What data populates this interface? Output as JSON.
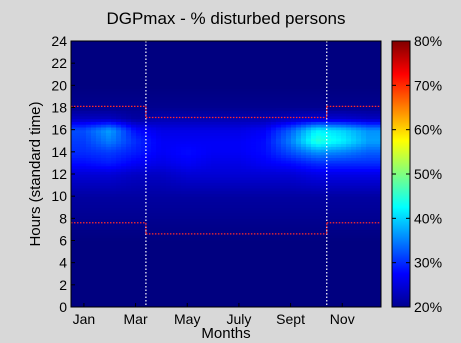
{
  "chart_data": {
    "type": "heatmap",
    "title": "DGPmax - % disturbed persons",
    "xlabel": "Months",
    "ylabel": "Hours (standard time)",
    "x_tick_labels": [
      "Jan",
      "Mar",
      "May",
      "July",
      "Sept",
      "Nov"
    ],
    "x_tick_months": [
      1,
      3,
      5,
      7,
      9,
      11
    ],
    "xlim": [
      0.5,
      12.5
    ],
    "y_ticks": [
      0,
      2,
      4,
      6,
      8,
      10,
      12,
      14,
      16,
      18,
      20,
      22,
      24
    ],
    "ylim": [
      0,
      24
    ],
    "colorbar": {
      "min": 20,
      "max": 80,
      "tick_labels": [
        "20%",
        "30%",
        "40%",
        "50%",
        "60%",
        "70%",
        "80%"
      ],
      "tick_values": [
        20,
        30,
        40,
        50,
        60,
        70,
        80
      ]
    },
    "grid": false,
    "vertical_dotted_lines_month": [
      3.4,
      10.4
    ],
    "sunrise_sunset_boundaries": {
      "winter": {
        "sunrise_hour": 7.6,
        "sunset_hour": 18.1
      },
      "summer": {
        "sunrise_hour": 6.6,
        "sunset_hour": 17.1
      },
      "summer_months_range": [
        3.4,
        10.4
      ]
    },
    "months": [
      1,
      2,
      3,
      4,
      5,
      6,
      7,
      8,
      9,
      10,
      11,
      12
    ],
    "hours": [
      0,
      2,
      4,
      6,
      8,
      10,
      12,
      13,
      14,
      15,
      16,
      17,
      18,
      20,
      22,
      24
    ],
    "values": [
      [
        20,
        20,
        20,
        20,
        21,
        22,
        25,
        28,
        30,
        31,
        32,
        24,
        21,
        20,
        20,
        20
      ],
      [
        20,
        20,
        20,
        20,
        21,
        22,
        25,
        29,
        31,
        35,
        37,
        24,
        21,
        20,
        20,
        20
      ],
      [
        20,
        20,
        20,
        20,
        21,
        22,
        24,
        27,
        29,
        30,
        28,
        22,
        21,
        20,
        20,
        20
      ],
      [
        20,
        20,
        20,
        20,
        21,
        22,
        24,
        26,
        27,
        27,
        26,
        23,
        21,
        20,
        20,
        20
      ],
      [
        20,
        20,
        20,
        20,
        21,
        22,
        25,
        27,
        28,
        27,
        26,
        23,
        21,
        20,
        20,
        20
      ],
      [
        20,
        20,
        20,
        20,
        21,
        22,
        25,
        26,
        27,
        27,
        26,
        23,
        21,
        20,
        20,
        20
      ],
      [
        20,
        20,
        20,
        20,
        21,
        22,
        25,
        26,
        27,
        27,
        26,
        23,
        21,
        20,
        20,
        20
      ],
      [
        20,
        20,
        20,
        20,
        21,
        22,
        25,
        27,
        28,
        28,
        27,
        23,
        21,
        20,
        20,
        20
      ],
      [
        20,
        20,
        20,
        20,
        21,
        22,
        25,
        28,
        32,
        35,
        33,
        24,
        21,
        20,
        20,
        20
      ],
      [
        20,
        20,
        20,
        20,
        21,
        22,
        26,
        30,
        36,
        45,
        42,
        25,
        21,
        20,
        20,
        20
      ],
      [
        20,
        20,
        20,
        20,
        21,
        22,
        26,
        30,
        35,
        42,
        40,
        25,
        21,
        20,
        20,
        20
      ],
      [
        20,
        20,
        20,
        20,
        21,
        22,
        26,
        30,
        33,
        37,
        36,
        24,
        21,
        20,
        20,
        20
      ]
    ]
  }
}
